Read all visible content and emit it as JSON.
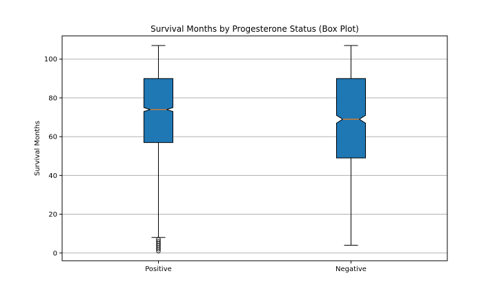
{
  "chart_data": {
    "type": "boxplot",
    "title": "Survival Months by Progesterone Status (Box Plot)",
    "xlabel": "",
    "ylabel": "Survival Months",
    "ylim": [
      -4,
      112
    ],
    "yticks": [
      0,
      20,
      40,
      60,
      80,
      100
    ],
    "grid": "y",
    "notched": true,
    "box_color": "#1f77b4",
    "median_color": "#ff7f0e",
    "categories": [
      "Positive",
      "Negative"
    ],
    "boxes": [
      {
        "category": "Positive",
        "whisker_low": 8,
        "q1": 57,
        "median": 74,
        "q3": 90,
        "whisker_high": 107,
        "notch_low": 73,
        "notch_high": 75,
        "outliers": [
          1,
          2,
          3,
          4,
          5,
          6,
          7
        ]
      },
      {
        "category": "Negative",
        "whisker_low": 4,
        "q1": 49,
        "median": 69,
        "q3": 90,
        "whisker_high": 107,
        "notch_low": 67,
        "notch_high": 71,
        "outliers": []
      }
    ]
  }
}
